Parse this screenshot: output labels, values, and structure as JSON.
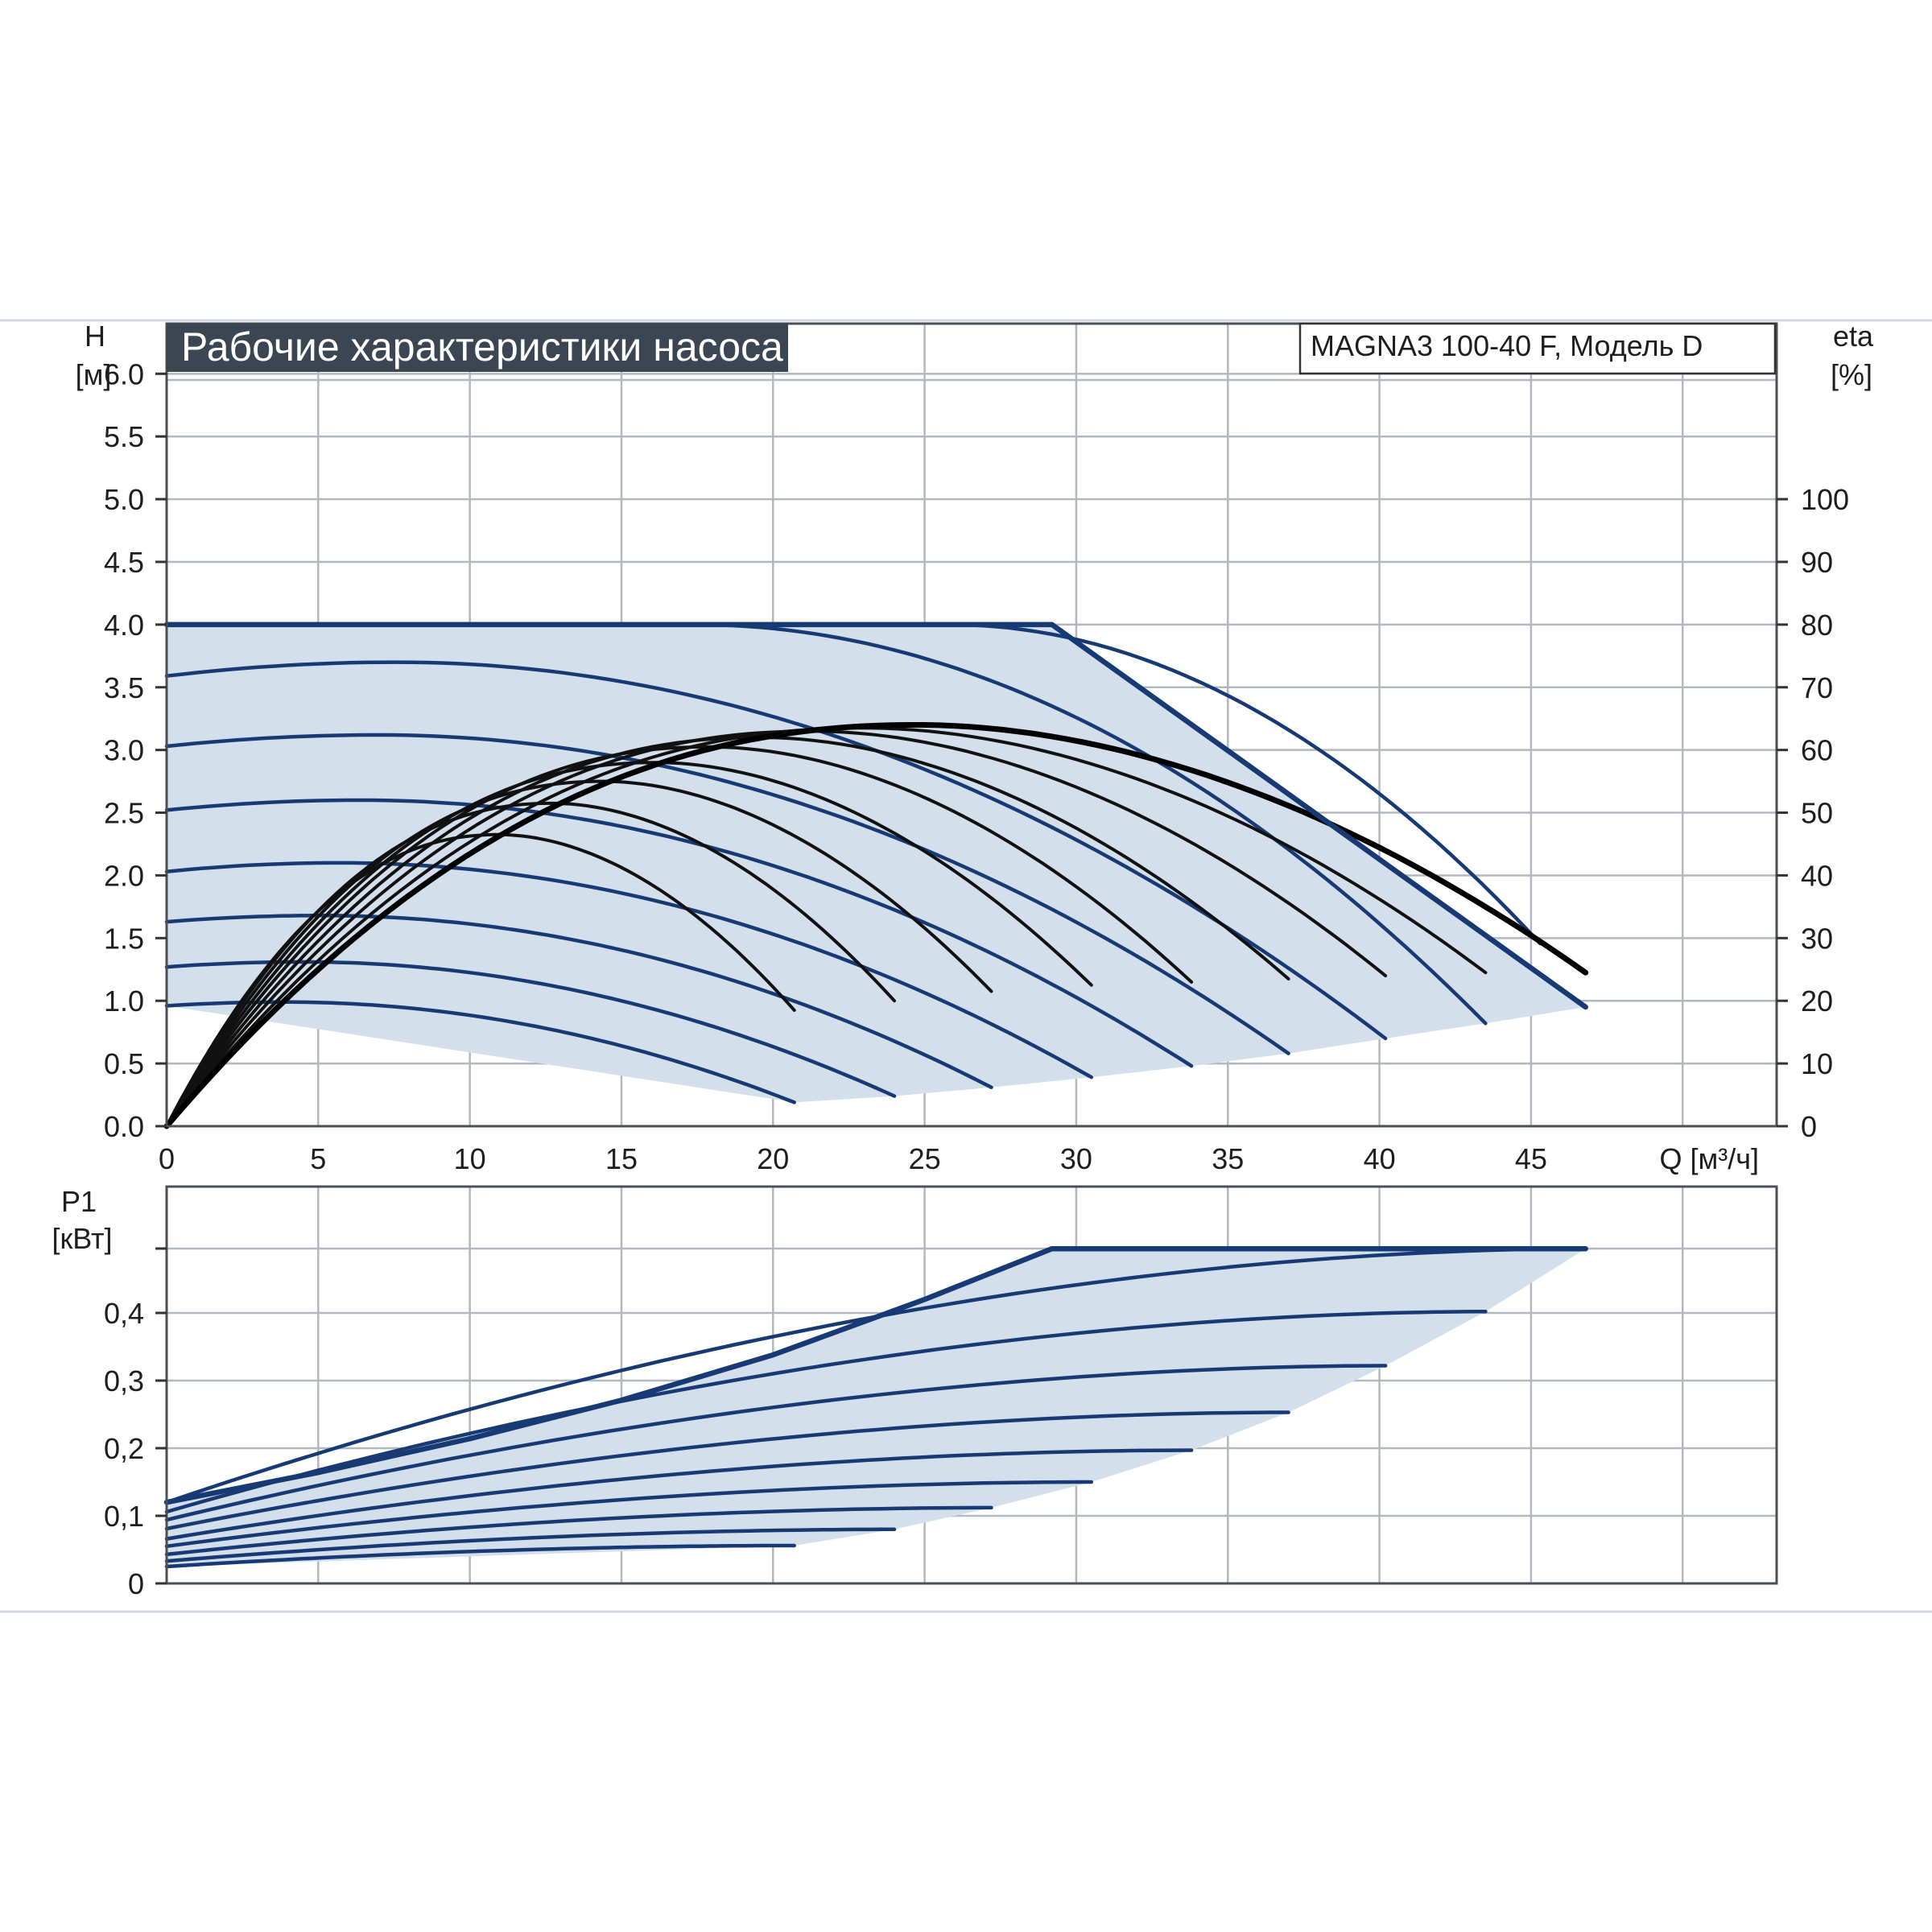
{
  "chart_data": [
    {
      "type": "line",
      "title": "Рабочие характеристики насоса",
      "model_label": "MAGNA3 100-40 F, Модель D",
      "xlabel": "Q [м³/ч]",
      "ylabel_line1": "H",
      "ylabel_line2": "[м]",
      "y2label_line1": "eta",
      "y2label_line2": "[%]",
      "xlim": [
        0,
        53.1
      ],
      "ylim": [
        0,
        6.4
      ],
      "y2lim": [
        0,
        128
      ],
      "x_ticks": [
        "0",
        "5",
        "10",
        "15",
        "20",
        "25",
        "30",
        "35",
        "40",
        "45"
      ],
      "y_ticks": [
        "0.0",
        "0.5",
        "1.0",
        "1.5",
        "2.0",
        "2.5",
        "3.0",
        "3.5",
        "4.0",
        "4.5",
        "5.0",
        "5.5",
        "6.0"
      ],
      "y2_ticks": [
        "0",
        "10",
        "20",
        "30",
        "40",
        "50",
        "60",
        "70",
        "80",
        "90",
        "100"
      ],
      "grid": true,
      "max_curve": {
        "x": [
          0,
          17.4,
          25.8,
          29.2,
          46.8
        ],
        "y": [
          4.0,
          4.0,
          4.0,
          4.0,
          0.95
        ]
      },
      "series": [
        {
          "qmax": 20.7,
          "h0": 0.96,
          "hmax": 0.99,
          "xm": 3.9,
          "hend": 0.19
        },
        {
          "qmax": 24.0,
          "h0": 1.27,
          "hmax": 1.31,
          "xm": 4.5,
          "hend": 0.24
        },
        {
          "qmax": 27.2,
          "h0": 1.63,
          "hmax": 1.68,
          "xm": 5.1,
          "hend": 0.31
        },
        {
          "qmax": 30.5,
          "h0": 2.03,
          "hmax": 2.1,
          "xm": 5.7,
          "hend": 0.39
        },
        {
          "qmax": 33.8,
          "h0": 2.52,
          "hmax": 2.6,
          "xm": 6.4,
          "hend": 0.48
        },
        {
          "qmax": 37.0,
          "h0": 3.03,
          "hmax": 3.12,
          "xm": 7.0,
          "hend": 0.58
        },
        {
          "qmax": 40.2,
          "h0": 3.59,
          "hmax": 3.7,
          "xm": 7.6,
          "hend": 0.7
        },
        {
          "qmax": 43.5,
          "h0": 4.0,
          "hmax": 4.0,
          "xm": 0,
          "hend": 0.82
        }
      ],
      "efficiency_curves": [
        {
          "qmax": 20.7,
          "peak": 46.5,
          "qend": 20.7,
          "eta_end": 18.5
        },
        {
          "qmax": 24.0,
          "peak": 51.5,
          "qend": 24.0,
          "eta_end": 20.0
        },
        {
          "qmax": 27.2,
          "peak": 55.0,
          "qend": 27.2,
          "eta_end": 21.5
        },
        {
          "qmax": 30.5,
          "peak": 58.0,
          "qend": 30.5,
          "eta_end": 22.5
        },
        {
          "qmax": 33.8,
          "peak": 60.5,
          "qend": 33.8,
          "eta_end": 23.0
        },
        {
          "qmax": 37.0,
          "peak": 62.0,
          "qend": 37.0,
          "eta_end": 23.5
        },
        {
          "qmax": 40.2,
          "peak": 63.0,
          "qend": 40.2,
          "eta_end": 24.0
        },
        {
          "qmax": 43.5,
          "peak": 63.5,
          "qend": 43.5,
          "eta_end": 24.5
        },
        {
          "qmax": 46.8,
          "peak": 64.0,
          "qend": 46.8,
          "eta_end": 24.5
        }
      ]
    },
    {
      "type": "line",
      "ylabel_line1": "P1",
      "ylabel_line2": "[кВт]",
      "xlim": [
        0,
        53.1
      ],
      "ylim": [
        0,
        0.5
      ],
      "y_ticks": [
        "0",
        "0,1",
        "0,2",
        "0,3",
        "0,4"
      ],
      "grid": true,
      "max_curve": {
        "x": [
          0,
          5,
          10,
          15,
          20,
          25,
          29.2,
          46.8
        ],
        "y": [
          0.12,
          0.164,
          0.214,
          0.271,
          0.338,
          0.42,
          0.495,
          0.495
        ]
      },
      "series": [
        {
          "qmax": 20.7,
          "p0": 0.025,
          "pend": 0.056
        },
        {
          "qmax": 24.0,
          "p0": 0.033,
          "pend": 0.08
        },
        {
          "qmax": 27.2,
          "p0": 0.043,
          "pend": 0.112
        },
        {
          "qmax": 30.5,
          "p0": 0.055,
          "pend": 0.15
        },
        {
          "qmax": 33.8,
          "p0": 0.066,
          "pend": 0.197
        },
        {
          "qmax": 37.0,
          "p0": 0.081,
          "pend": 0.253
        },
        {
          "qmax": 40.2,
          "p0": 0.094,
          "pend": 0.322
        },
        {
          "qmax": 43.5,
          "p0": 0.106,
          "pend": 0.402
        },
        {
          "qmax": 46.8,
          "p0": 0.12,
          "pend": 0.495
        }
      ]
    }
  ]
}
